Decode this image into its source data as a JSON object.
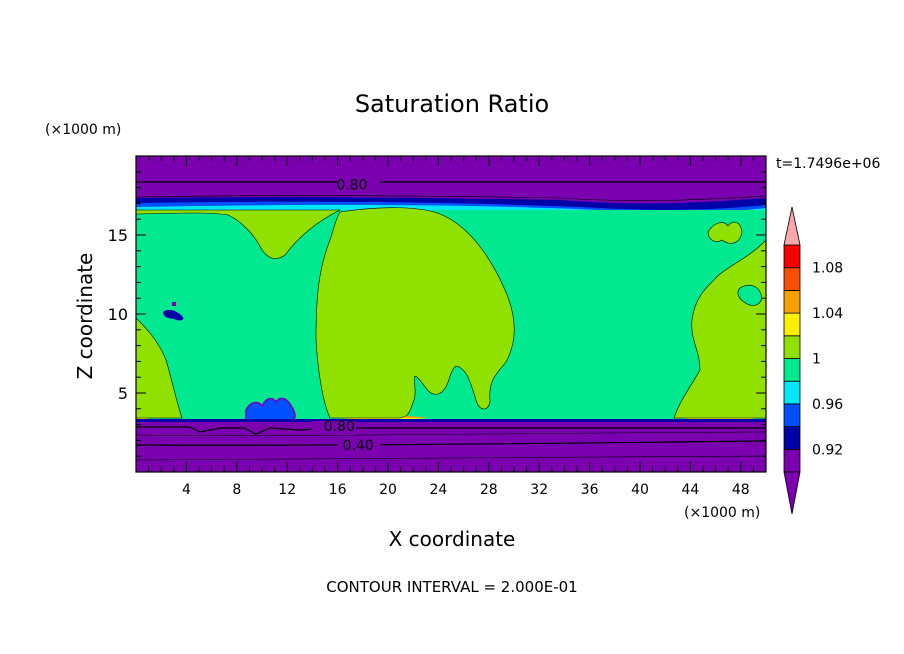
{
  "chart_data": {
    "type": "heatmap",
    "title": "Saturation Ratio",
    "xlabel": "X coordinate",
    "ylabel": "Z coordinate",
    "x_units": "(×1000 m)",
    "y_units": "(×1000 m)",
    "time_label": "t=1.7496e+06",
    "footer": "CONTOUR INTERVAL = 2.000E-01",
    "xlim": [
      0,
      50
    ],
    "ylim": [
      0,
      20
    ],
    "x_ticks": [
      4,
      8,
      12,
      16,
      20,
      24,
      28,
      32,
      36,
      40,
      44,
      48
    ],
    "y_ticks": [
      5,
      10,
      15
    ],
    "colorbar": {
      "levels": [
        0.9,
        0.92,
        0.94,
        0.96,
        0.98,
        1.0,
        1.02,
        1.04,
        1.06,
        1.08,
        1.1
      ],
      "tick_labels": [
        "0.92",
        "0.96",
        "1",
        "1.04",
        "1.08"
      ],
      "colors": [
        "#7a00b0",
        "#0000a8",
        "#0050ff",
        "#00e8f8",
        "#00e890",
        "#90e000",
        "#f8f000",
        "#f8a000",
        "#f85000",
        "#f80000"
      ],
      "over_color": "#f8a8a8",
      "under_color": "#7a00b0"
    },
    "contour_labels": [
      {
        "text": "0.80",
        "x": 16.5,
        "y": 18.2
      },
      {
        "text": "0.80",
        "x": 15.5,
        "y": 2.9
      },
      {
        "text": "0.40",
        "x": 17.0,
        "y": 1.7
      }
    ],
    "fields": {
      "background": "#7a00b0",
      "upper_band": "#0000a8",
      "moist_layer": "#00e890",
      "supersaturated": "#90e000",
      "cloud_base": "#f8f000"
    }
  }
}
